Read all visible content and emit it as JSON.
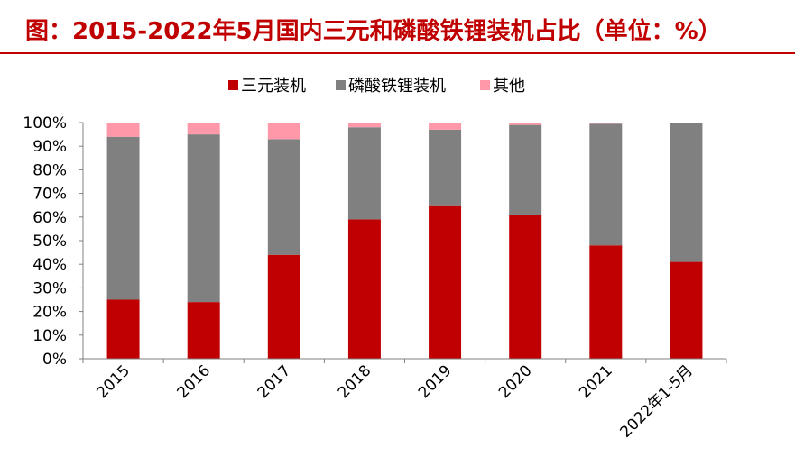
{
  "title": "图：2015-2022年5月国内三元和磷酸铁锂装机占比（单位：%）",
  "chart_data": {
    "type": "bar",
    "stacked": true,
    "categories": [
      "2015",
      "2016",
      "2017",
      "2018",
      "2019",
      "2020",
      "2021",
      "2022年1-5月"
    ],
    "series": [
      {
        "name": "三元装机",
        "color": "#c00000",
        "values": [
          25,
          24,
          44,
          59,
          65,
          61,
          48,
          41
        ]
      },
      {
        "name": "磷酸铁锂装机",
        "color": "#808080",
        "values": [
          69,
          71,
          49,
          39,
          32,
          38,
          51.5,
          59
        ]
      },
      {
        "name": "其他",
        "color": "#ff99aa",
        "values": [
          6,
          5,
          7,
          2,
          3,
          1,
          0.5,
          0
        ]
      }
    ],
    "yticks": [
      "0%",
      "10%",
      "20%",
      "30%",
      "40%",
      "50%",
      "60%",
      "70%",
      "80%",
      "90%",
      "100%"
    ],
    "ylim": [
      0,
      100
    ],
    "legend_position": "top",
    "grid": false
  }
}
